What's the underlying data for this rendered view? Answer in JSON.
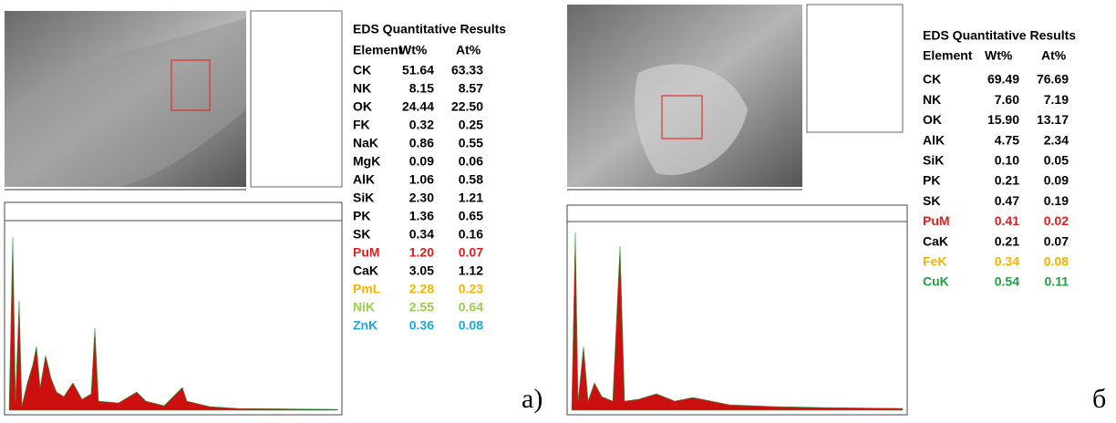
{
  "panels": [
    {
      "label": "а)",
      "table": {
        "title": "EDS Quantitative Results",
        "header": [
          "Element",
          "Wt%",
          "At%"
        ],
        "rows": [
          {
            "cells": [
              "CK",
              "51.64",
              "63.33"
            ],
            "color": "#000000"
          },
          {
            "cells": [
              "NK",
              "8.15",
              "8.57"
            ],
            "color": "#000000"
          },
          {
            "cells": [
              "OK",
              "24.44",
              "22.50"
            ],
            "color": "#000000"
          },
          {
            "cells": [
              "FK",
              "0.32",
              "0.25"
            ],
            "color": "#000000"
          },
          {
            "cells": [
              "NaK",
              "0.86",
              "0.55"
            ],
            "color": "#000000"
          },
          {
            "cells": [
              "MgK",
              "0.09",
              "0.06"
            ],
            "color": "#000000"
          },
          {
            "cells": [
              "AlK",
              "1.06",
              "0.58"
            ],
            "color": "#000000"
          },
          {
            "cells": [
              "SiK",
              "2.30",
              "1.21"
            ],
            "color": "#000000"
          },
          {
            "cells": [
              "PK",
              "1.36",
              "0.65"
            ],
            "color": "#000000"
          },
          {
            "cells": [
              "SK",
              "0.34",
              "0.16"
            ],
            "color": "#000000"
          },
          {
            "cells": [
              "PuM",
              "1.20",
              "0.07"
            ],
            "color": "#e02020"
          },
          {
            "cells": [
              "CaK",
              "3.05",
              "1.12"
            ],
            "color": "#000000"
          },
          {
            "cells": [
              "PmL",
              "2.28",
              "0.23"
            ],
            "color": "#f5b400"
          },
          {
            "cells": [
              "NiK",
              "2.55",
              "0.64"
            ],
            "color": "#9acd50"
          },
          {
            "cells": [
              "ZnK",
              "0.36",
              "0.08"
            ],
            "color": "#1fa8e0"
          }
        ]
      }
    },
    {
      "label": "б",
      "table": {
        "title": "EDS Quantitative Results",
        "header": [
          "Element",
          "Wt%",
          "At%"
        ],
        "rows": [
          {
            "cells": [
              "CK",
              "69.49",
              "76.69"
            ],
            "color": "#000000"
          },
          {
            "cells": [
              "NK",
              "7.60",
              "7.19"
            ],
            "color": "#000000"
          },
          {
            "cells": [
              "OK",
              "15.90",
              "13.17"
            ],
            "color": "#000000"
          },
          {
            "cells": [
              "AlK",
              "4.75",
              "2.34"
            ],
            "color": "#000000"
          },
          {
            "cells": [
              "SiK",
              "0.10",
              "0.05"
            ],
            "color": "#000000"
          },
          {
            "cells": [
              "PK",
              "0.21",
              "0.09"
            ],
            "color": "#000000"
          },
          {
            "cells": [
              "SK",
              "0.47",
              "0.19"
            ],
            "color": "#000000"
          },
          {
            "cells": [
              "PuM",
              "0.41",
              "0.02"
            ],
            "color": "#e02020"
          },
          {
            "cells": [
              "CaK",
              "0.21",
              "0.07"
            ],
            "color": "#000000"
          },
          {
            "cells": [
              "FeK",
              "0.34",
              "0.08"
            ],
            "color": "#f5b400"
          },
          {
            "cells": [
              "CuK",
              "0.54",
              "0.11"
            ],
            "color": "#22a040"
          }
        ]
      }
    }
  ]
}
